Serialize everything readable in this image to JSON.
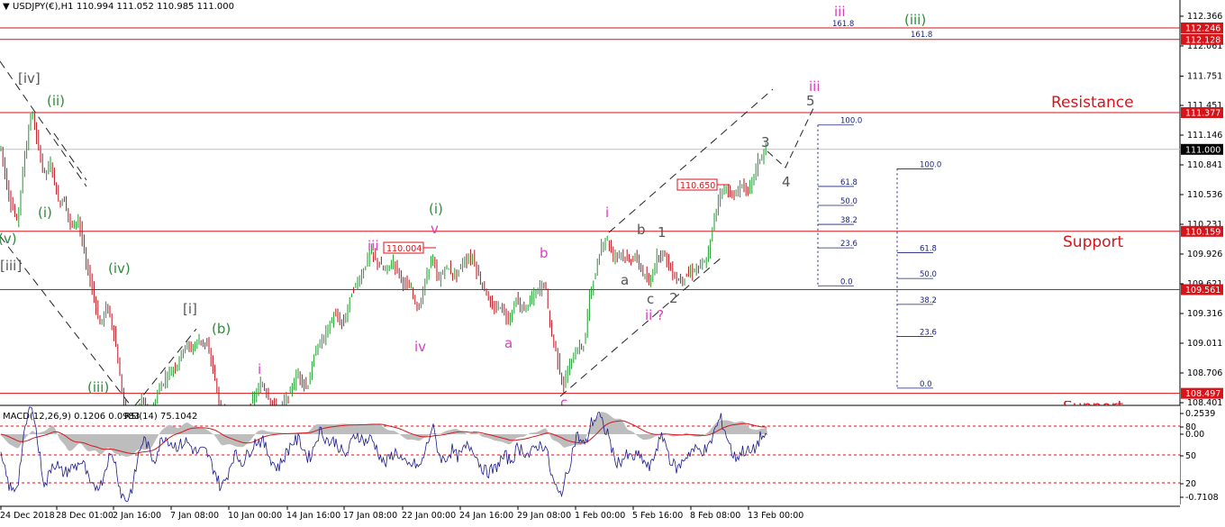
{
  "header": {
    "symbol": "USDJPY(€),H1",
    "ohlc": "110.994 111.052 110.985 111.000"
  },
  "macd_label": "MACD(12,26,9) 0.1206 0.0983",
  "rsi_label": "RSI(14) 75.1042",
  "colors": {
    "up": "#1d9b2e",
    "down": "#b5121b",
    "level": "#d7141a",
    "pink": "#d63fc2",
    "green": "#2e8b3a",
    "gray": "#555555",
    "navy": "#1a237e",
    "macd_hist": "#bdbdbd",
    "macd_signal": "#d7141a",
    "rsi_line": "#1a1a8c"
  },
  "zone_labels": {
    "resistance": "Resistance",
    "support": "Support",
    "support2": "Support"
  },
  "chart_data": {
    "type": "candlestick",
    "timeframe": "H1",
    "ylim": [
      108.401,
      112.366
    ],
    "price_ticks": [
      "112.366",
      "112.061",
      "111.751",
      "111.451",
      "111.146",
      "110.841",
      "110.536",
      "110.231",
      "109.926",
      "109.621",
      "109.316",
      "109.011",
      "108.706",
      "108.401"
    ],
    "x_ticks": [
      "24 Dec 2018",
      "28 Dec 01:00",
      "2 Jan 16:00",
      "7 Jan 08:00",
      "10 Jan 00:00",
      "14 Jan 16:00",
      "17 Jan 08:00",
      "22 Jan 00:00",
      "24 Jan 16:00",
      "29 Jan 08:00",
      "1 Feb 00:00",
      "5 Feb 16:00",
      "8 Feb 08:00",
      "13 Feb 00:00"
    ],
    "current_price": "111.000",
    "price_path": [
      [
        0,
        111.15
      ],
      [
        10,
        110.55
      ],
      [
        20,
        110.25
      ],
      [
        28,
        110.9
      ],
      [
        36,
        111.4
      ],
      [
        42,
        111.1
      ],
      [
        50,
        110.75
      ],
      [
        58,
        110.85
      ],
      [
        66,
        110.45
      ],
      [
        72,
        110.5
      ],
      [
        80,
        110.2
      ],
      [
        88,
        110.3
      ],
      [
        96,
        109.85
      ],
      [
        104,
        109.55
      ],
      [
        112,
        109.2
      ],
      [
        120,
        109.4
      ],
      [
        128,
        109.1
      ],
      [
        135,
        108.6
      ],
      [
        140,
        108.3
      ],
      [
        148,
        108.1
      ],
      [
        158,
        108.45
      ],
      [
        168,
        108.25
      ],
      [
        178,
        108.55
      ],
      [
        188,
        108.7
      ],
      [
        198,
        108.8
      ],
      [
        206,
        109.0
      ],
      [
        214,
        108.95
      ],
      [
        222,
        109.05
      ],
      [
        230,
        109.0
      ],
      [
        238,
        108.75
      ],
      [
        246,
        108.3
      ],
      [
        256,
        108.35
      ],
      [
        270,
        108.2
      ],
      [
        280,
        108.4
      ],
      [
        292,
        108.6
      ],
      [
        300,
        108.45
      ],
      [
        310,
        108.3
      ],
      [
        320,
        108.45
      ],
      [
        332,
        108.7
      ],
      [
        342,
        108.55
      ],
      [
        352,
        108.95
      ],
      [
        362,
        109.1
      ],
      [
        372,
        109.3
      ],
      [
        382,
        109.2
      ],
      [
        392,
        109.55
      ],
      [
        402,
        109.7
      ],
      [
        412,
        109.95
      ],
      [
        420,
        109.85
      ],
      [
        428,
        109.75
      ],
      [
        438,
        109.85
      ],
      [
        448,
        109.65
      ],
      [
        458,
        109.55
      ],
      [
        466,
        109.35
      ],
      [
        472,
        109.6
      ],
      [
        480,
        109.9
      ],
      [
        488,
        109.65
      ],
      [
        496,
        109.8
      ],
      [
        506,
        109.7
      ],
      [
        516,
        109.85
      ],
      [
        526,
        109.9
      ],
      [
        532,
        109.7
      ],
      [
        540,
        109.55
      ],
      [
        548,
        109.35
      ],
      [
        556,
        109.4
      ],
      [
        566,
        109.25
      ],
      [
        574,
        109.45
      ],
      [
        582,
        109.35
      ],
      [
        590,
        109.45
      ],
      [
        598,
        109.55
      ],
      [
        606,
        109.65
      ],
      [
        612,
        109.15
      ],
      [
        618,
        108.95
      ],
      [
        626,
        108.55
      ],
      [
        634,
        108.8
      ],
      [
        642,
        108.95
      ],
      [
        650,
        109.0
      ],
      [
        656,
        109.55
      ],
      [
        662,
        109.7
      ],
      [
        668,
        110.0
      ],
      [
        674,
        110.1
      ],
      [
        682,
        109.9
      ],
      [
        690,
        109.95
      ],
      [
        698,
        109.85
      ],
      [
        706,
        109.9
      ],
      [
        714,
        109.75
      ],
      [
        722,
        109.6
      ],
      [
        730,
        109.9
      ],
      [
        738,
        109.95
      ],
      [
        746,
        109.75
      ],
      [
        754,
        109.65
      ],
      [
        762,
        109.7
      ],
      [
        770,
        109.75
      ],
      [
        778,
        109.8
      ],
      [
        786,
        109.85
      ],
      [
        794,
        110.3
      ],
      [
        800,
        110.55
      ],
      [
        808,
        110.6
      ],
      [
        816,
        110.5
      ],
      [
        824,
        110.65
      ],
      [
        832,
        110.55
      ],
      [
        838,
        110.75
      ],
      [
        844,
        110.9
      ],
      [
        852,
        111.0
      ]
    ]
  },
  "wave_labels": [
    {
      "text": "[iv]",
      "color": "gray"
    },
    {
      "text": "(ii)",
      "color": "green"
    },
    {
      "text": "(i)",
      "color": "green"
    },
    {
      "text": "(v)",
      "color": "green"
    },
    {
      "text": "[iii]",
      "color": "gray"
    },
    {
      "text": "(iv)",
      "color": "green"
    },
    {
      "text": "(iii)",
      "color": "green"
    },
    {
      "text": "[i]",
      "color": "gray"
    },
    {
      "text": "(b)",
      "color": "green"
    },
    {
      "text": "i",
      "color": "pink"
    },
    {
      "text": "iii",
      "color": "pink"
    },
    {
      "text": "iv",
      "color": "pink"
    },
    {
      "text": "v",
      "color": "pink"
    },
    {
      "text": "(i)",
      "color": "green"
    },
    {
      "text": "b",
      "color": "pink"
    },
    {
      "text": "a",
      "color": "pink"
    },
    {
      "text": "c",
      "color": "pink"
    },
    {
      "text": "i",
      "color": "pink"
    },
    {
      "text": "b",
      "color": "gray"
    },
    {
      "text": "1",
      "color": "gray"
    },
    {
      "text": "a",
      "color": "gray"
    },
    {
      "text": "c",
      "color": "gray"
    },
    {
      "text": "2",
      "color": "gray"
    },
    {
      "text": "ii ?",
      "color": "pink"
    },
    {
      "text": "3",
      "color": "gray"
    },
    {
      "text": "4",
      "color": "gray"
    },
    {
      "text": "5",
      "color": "gray"
    },
    {
      "text": "iii",
      "color": "pink"
    },
    {
      "text": "iii",
      "color": "pink"
    },
    {
      "text": "(iii)",
      "color": "green"
    }
  ],
  "price_boxes": [
    {
      "text": "110.004"
    },
    {
      "text": "110.650"
    }
  ],
  "levels": [
    {
      "price": 112.246,
      "label": "112.246"
    },
    {
      "price": 112.128,
      "label": "112.128"
    },
    {
      "price": 111.377,
      "label": "111.377"
    },
    {
      "price": 110.159,
      "label": "110.159"
    },
    {
      "price": 109.561,
      "label": "109.561"
    },
    {
      "price": 108.497,
      "label": "108.497"
    }
  ],
  "fib_sets": [
    {
      "labels": [
        "100.0",
        "61.8",
        "50.0",
        "38.2",
        "23.6",
        "0.0"
      ],
      "top_price": 111.25,
      "bottom_price": 109.6,
      "values": [
        100,
        61.8,
        50,
        38.2,
        23.6,
        0
      ]
    },
    {
      "labels": [
        "100.0",
        "61.8",
        "50.0",
        "38.2",
        "23.6",
        "0.0"
      ],
      "top_price": 110.8,
      "bottom_price": 108.55,
      "values": [
        100,
        61.8,
        50,
        38.2,
        23.6,
        0
      ]
    }
  ],
  "fib_ext_labels": [
    "161.8",
    "161.8"
  ],
  "indicator": {
    "ticks": [
      "0.2539",
      "80",
      "0.00",
      "50",
      "20",
      "-0.7108"
    ]
  }
}
